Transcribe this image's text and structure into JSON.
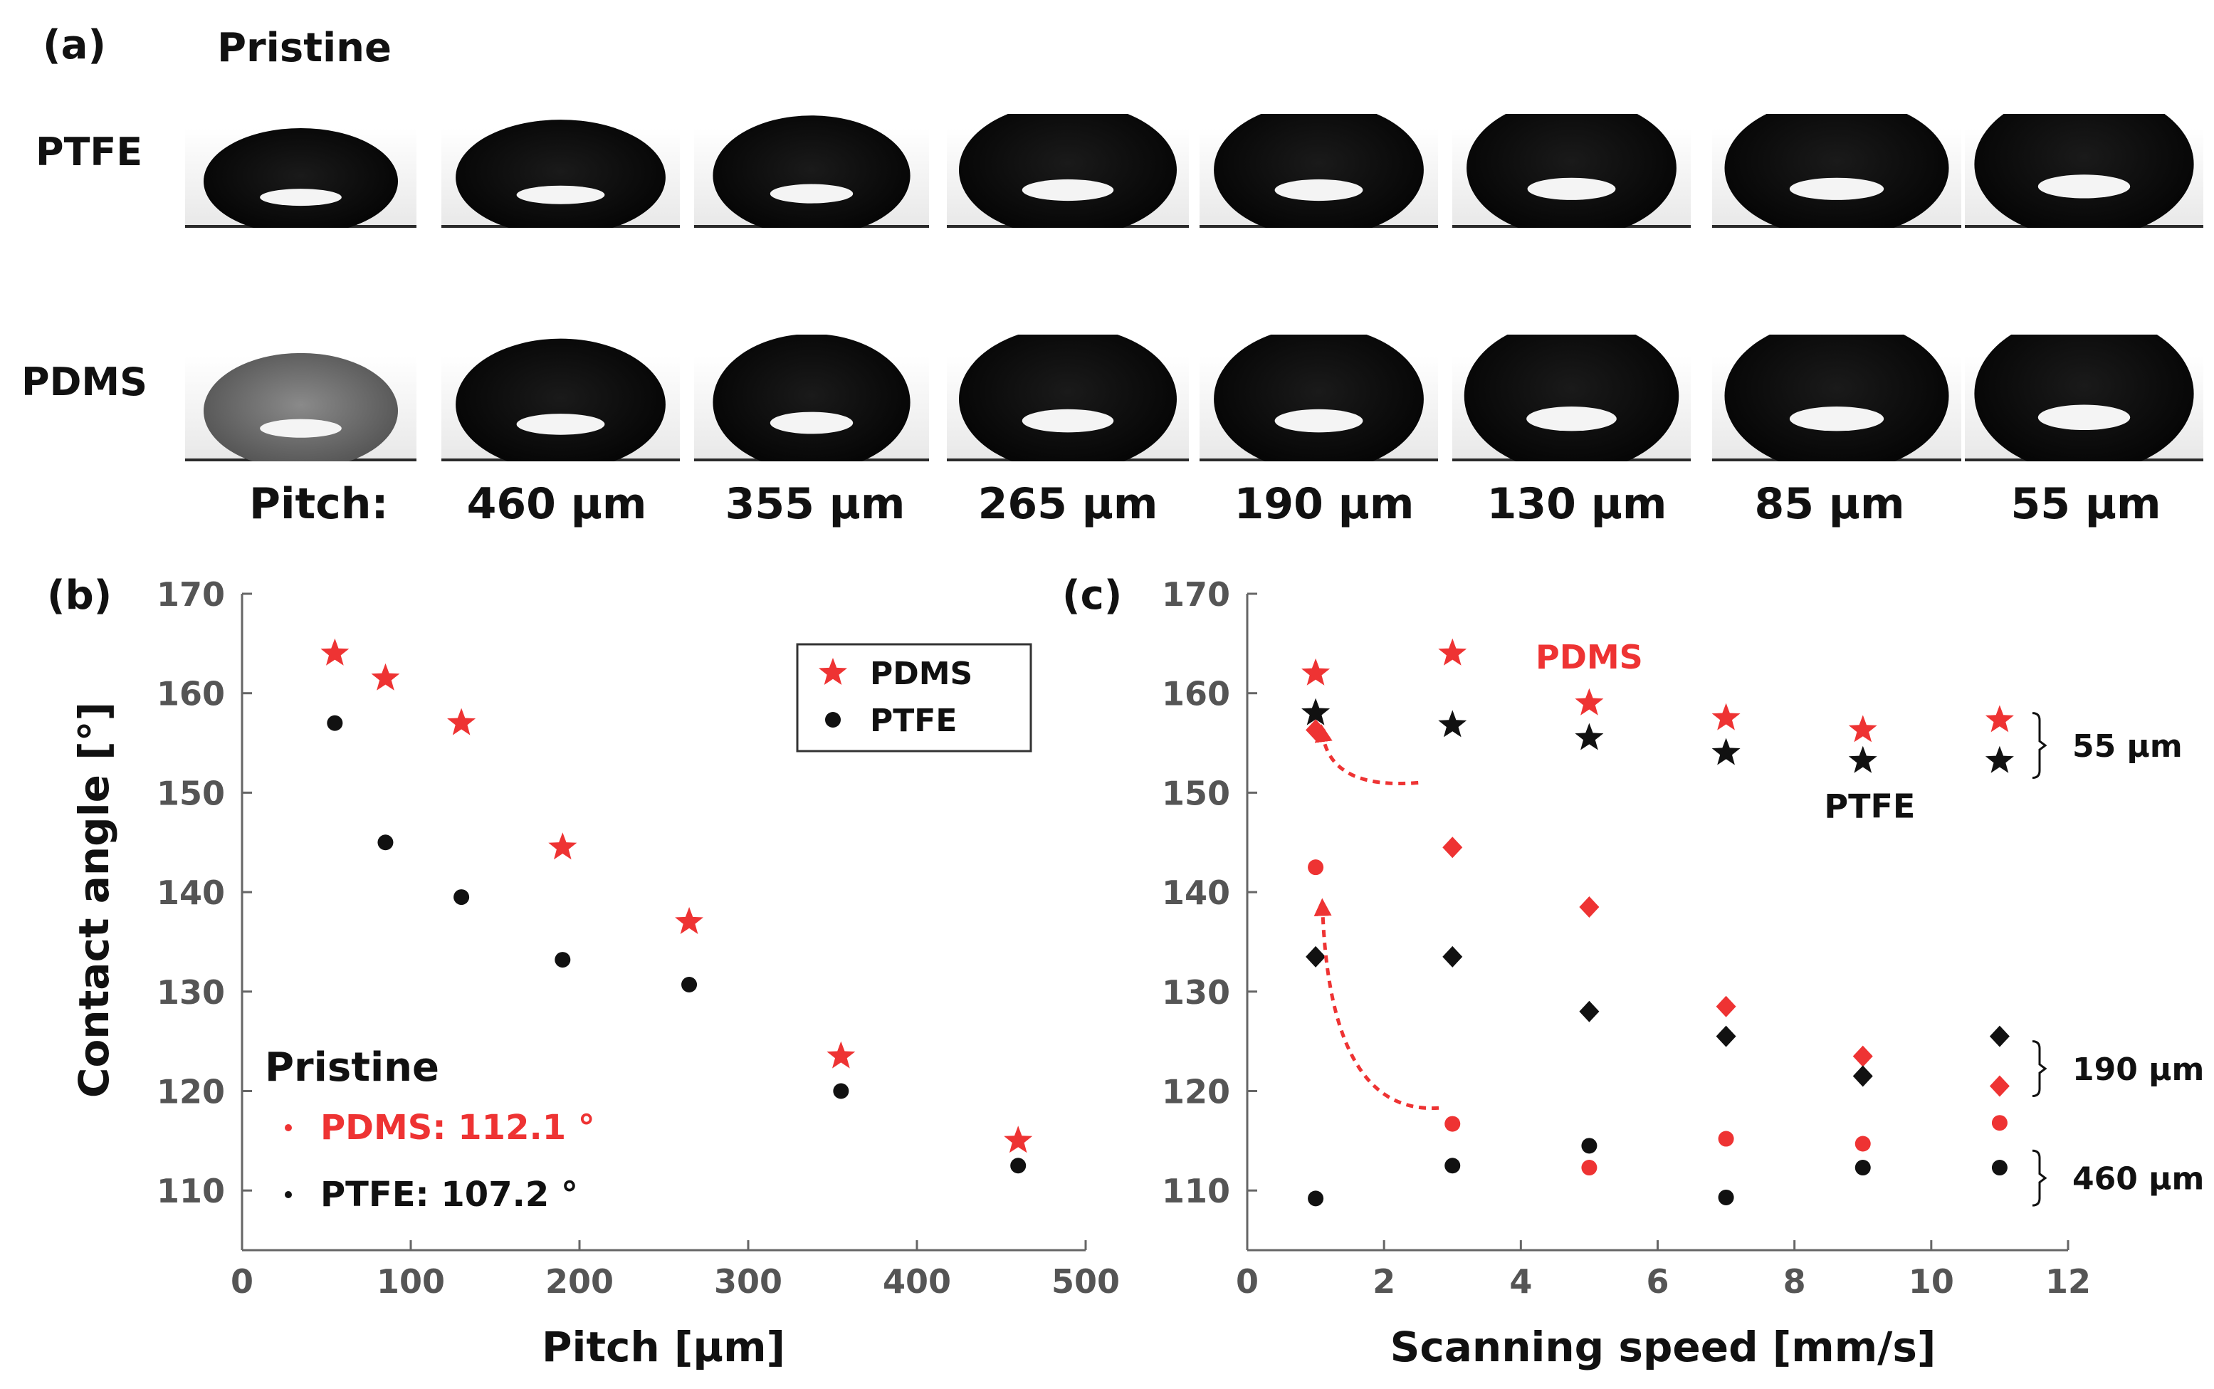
{
  "panel_a": {
    "label": "(a)",
    "pristine_label": "Pristine",
    "row_labels": [
      "PTFE",
      "PDMS"
    ],
    "pitch_prefix": "Pitch:",
    "column_labels": [
      "460 µm",
      "355 µm",
      "265 µm",
      "190 µm",
      "130 µm",
      "85 µm",
      "55 µm"
    ],
    "drop_images": {
      "PTFE": [
        "pristine-drop",
        "460",
        "355",
        "265",
        "190",
        "130",
        "85",
        "55"
      ],
      "PDMS": [
        "pristine-drop",
        "460",
        "355",
        "265",
        "190",
        "130",
        "85",
        "55"
      ]
    }
  },
  "colors": {
    "pdms": "#ee3333",
    "ptfe": "#111111",
    "axis": "#666666"
  },
  "chart_data": [
    {
      "panel": "(b)",
      "type": "scatter",
      "xlabel": "Pitch [µm]",
      "ylabel": "Contact angle [°]",
      "xlim": [
        0,
        500
      ],
      "ylim": [
        104,
        170
      ],
      "xticks": [
        0,
        100,
        200,
        300,
        400,
        500
      ],
      "yticks": [
        110,
        120,
        130,
        140,
        150,
        160,
        170
      ],
      "legend": "top-right",
      "series": [
        {
          "name": "PDMS",
          "marker": "star",
          "color": "#ee3333",
          "x": [
            55,
            85,
            130,
            190,
            265,
            355,
            460
          ],
          "y": [
            164,
            161.5,
            157,
            144.5,
            137,
            123.5,
            115
          ]
        },
        {
          "name": "PTFE",
          "marker": "circle",
          "color": "#111111",
          "x": [
            55,
            85,
            130,
            190,
            265,
            355,
            460
          ],
          "y": [
            157,
            145,
            139.5,
            133.2,
            130.7,
            120,
            112.5
          ]
        }
      ],
      "annotation": {
        "title": "Pristine",
        "items": [
          {
            "text": "PDMS: 112.1 °",
            "color": "#ee3333"
          },
          {
            "text": "PTFE: 107.2 °",
            "color": "#111111"
          }
        ]
      }
    },
    {
      "panel": "(c)",
      "type": "scatter",
      "xlabel": "Scanning speed [mm/s]",
      "ylabel": "",
      "xlim": [
        0,
        12
      ],
      "ylim": [
        104,
        170
      ],
      "xticks": [
        0,
        2,
        4,
        6,
        8,
        10,
        12
      ],
      "yticks": [
        110,
        120,
        130,
        140,
        150,
        160,
        170
      ],
      "labels": [
        {
          "text": "PDMS",
          "color": "#ee3333",
          "x": 5.0,
          "y": 162.5
        },
        {
          "text": "PTFE",
          "color": "#111111",
          "x": 9.1,
          "y": 147.5
        }
      ],
      "brackets": [
        {
          "text": "55 µm",
          "y": [
            151.5,
            158
          ]
        },
        {
          "text": "190 µm",
          "y": [
            119.5,
            125
          ]
        },
        {
          "text": "460 µm",
          "y": [
            108.5,
            114
          ]
        }
      ],
      "series": [
        {
          "name": "PDMS",
          "pitch": "55 µm",
          "marker": "star",
          "color": "#ee3333",
          "x": [
            1,
            3,
            5,
            7,
            9,
            11
          ],
          "y": [
            162,
            164,
            159,
            157.5,
            156.3,
            157.3
          ]
        },
        {
          "name": "PTFE",
          "pitch": "55 µm",
          "marker": "star",
          "color": "#111111",
          "x": [
            1,
            3,
            5,
            7,
            9,
            11
          ],
          "y": [
            158,
            156.8,
            155.5,
            154,
            153.2,
            153.2
          ]
        },
        {
          "name": "PDMS",
          "pitch": "190 µm",
          "marker": "diamond",
          "color": "#ee3333",
          "x": [
            1,
            3,
            5,
            7,
            9,
            11
          ],
          "y": [
            156.3,
            144.5,
            138.5,
            128.5,
            123.5,
            120.5
          ]
        },
        {
          "name": "PTFE",
          "pitch": "190 µm",
          "marker": "diamond",
          "color": "#111111",
          "x": [
            1,
            3,
            5,
            7,
            9,
            11
          ],
          "y": [
            133.5,
            133.5,
            128,
            125.5,
            121.5,
            125.5
          ]
        },
        {
          "name": "PDMS",
          "pitch": "460 µm",
          "marker": "circle",
          "color": "#ee3333",
          "x": [
            1,
            3,
            5,
            7,
            9,
            11
          ],
          "y": [
            142.5,
            116.7,
            112.3,
            115.2,
            114.7,
            116.8
          ]
        },
        {
          "name": "PTFE",
          "pitch": "460 µm",
          "marker": "circle",
          "color": "#111111",
          "x": [
            1,
            3,
            5,
            7,
            9,
            11
          ],
          "y": [
            109.2,
            112.5,
            114.5,
            109.3,
            112.3,
            112.3
          ]
        }
      ],
      "arrows": [
        {
          "from": [
            2.5,
            151
          ],
          "to": [
            1.1,
            156
          ],
          "color": "#ee3333"
        },
        {
          "from": [
            2.8,
            118.3
          ],
          "to": [
            1.1,
            138.5
          ],
          "color": "#ee3333"
        }
      ]
    }
  ]
}
